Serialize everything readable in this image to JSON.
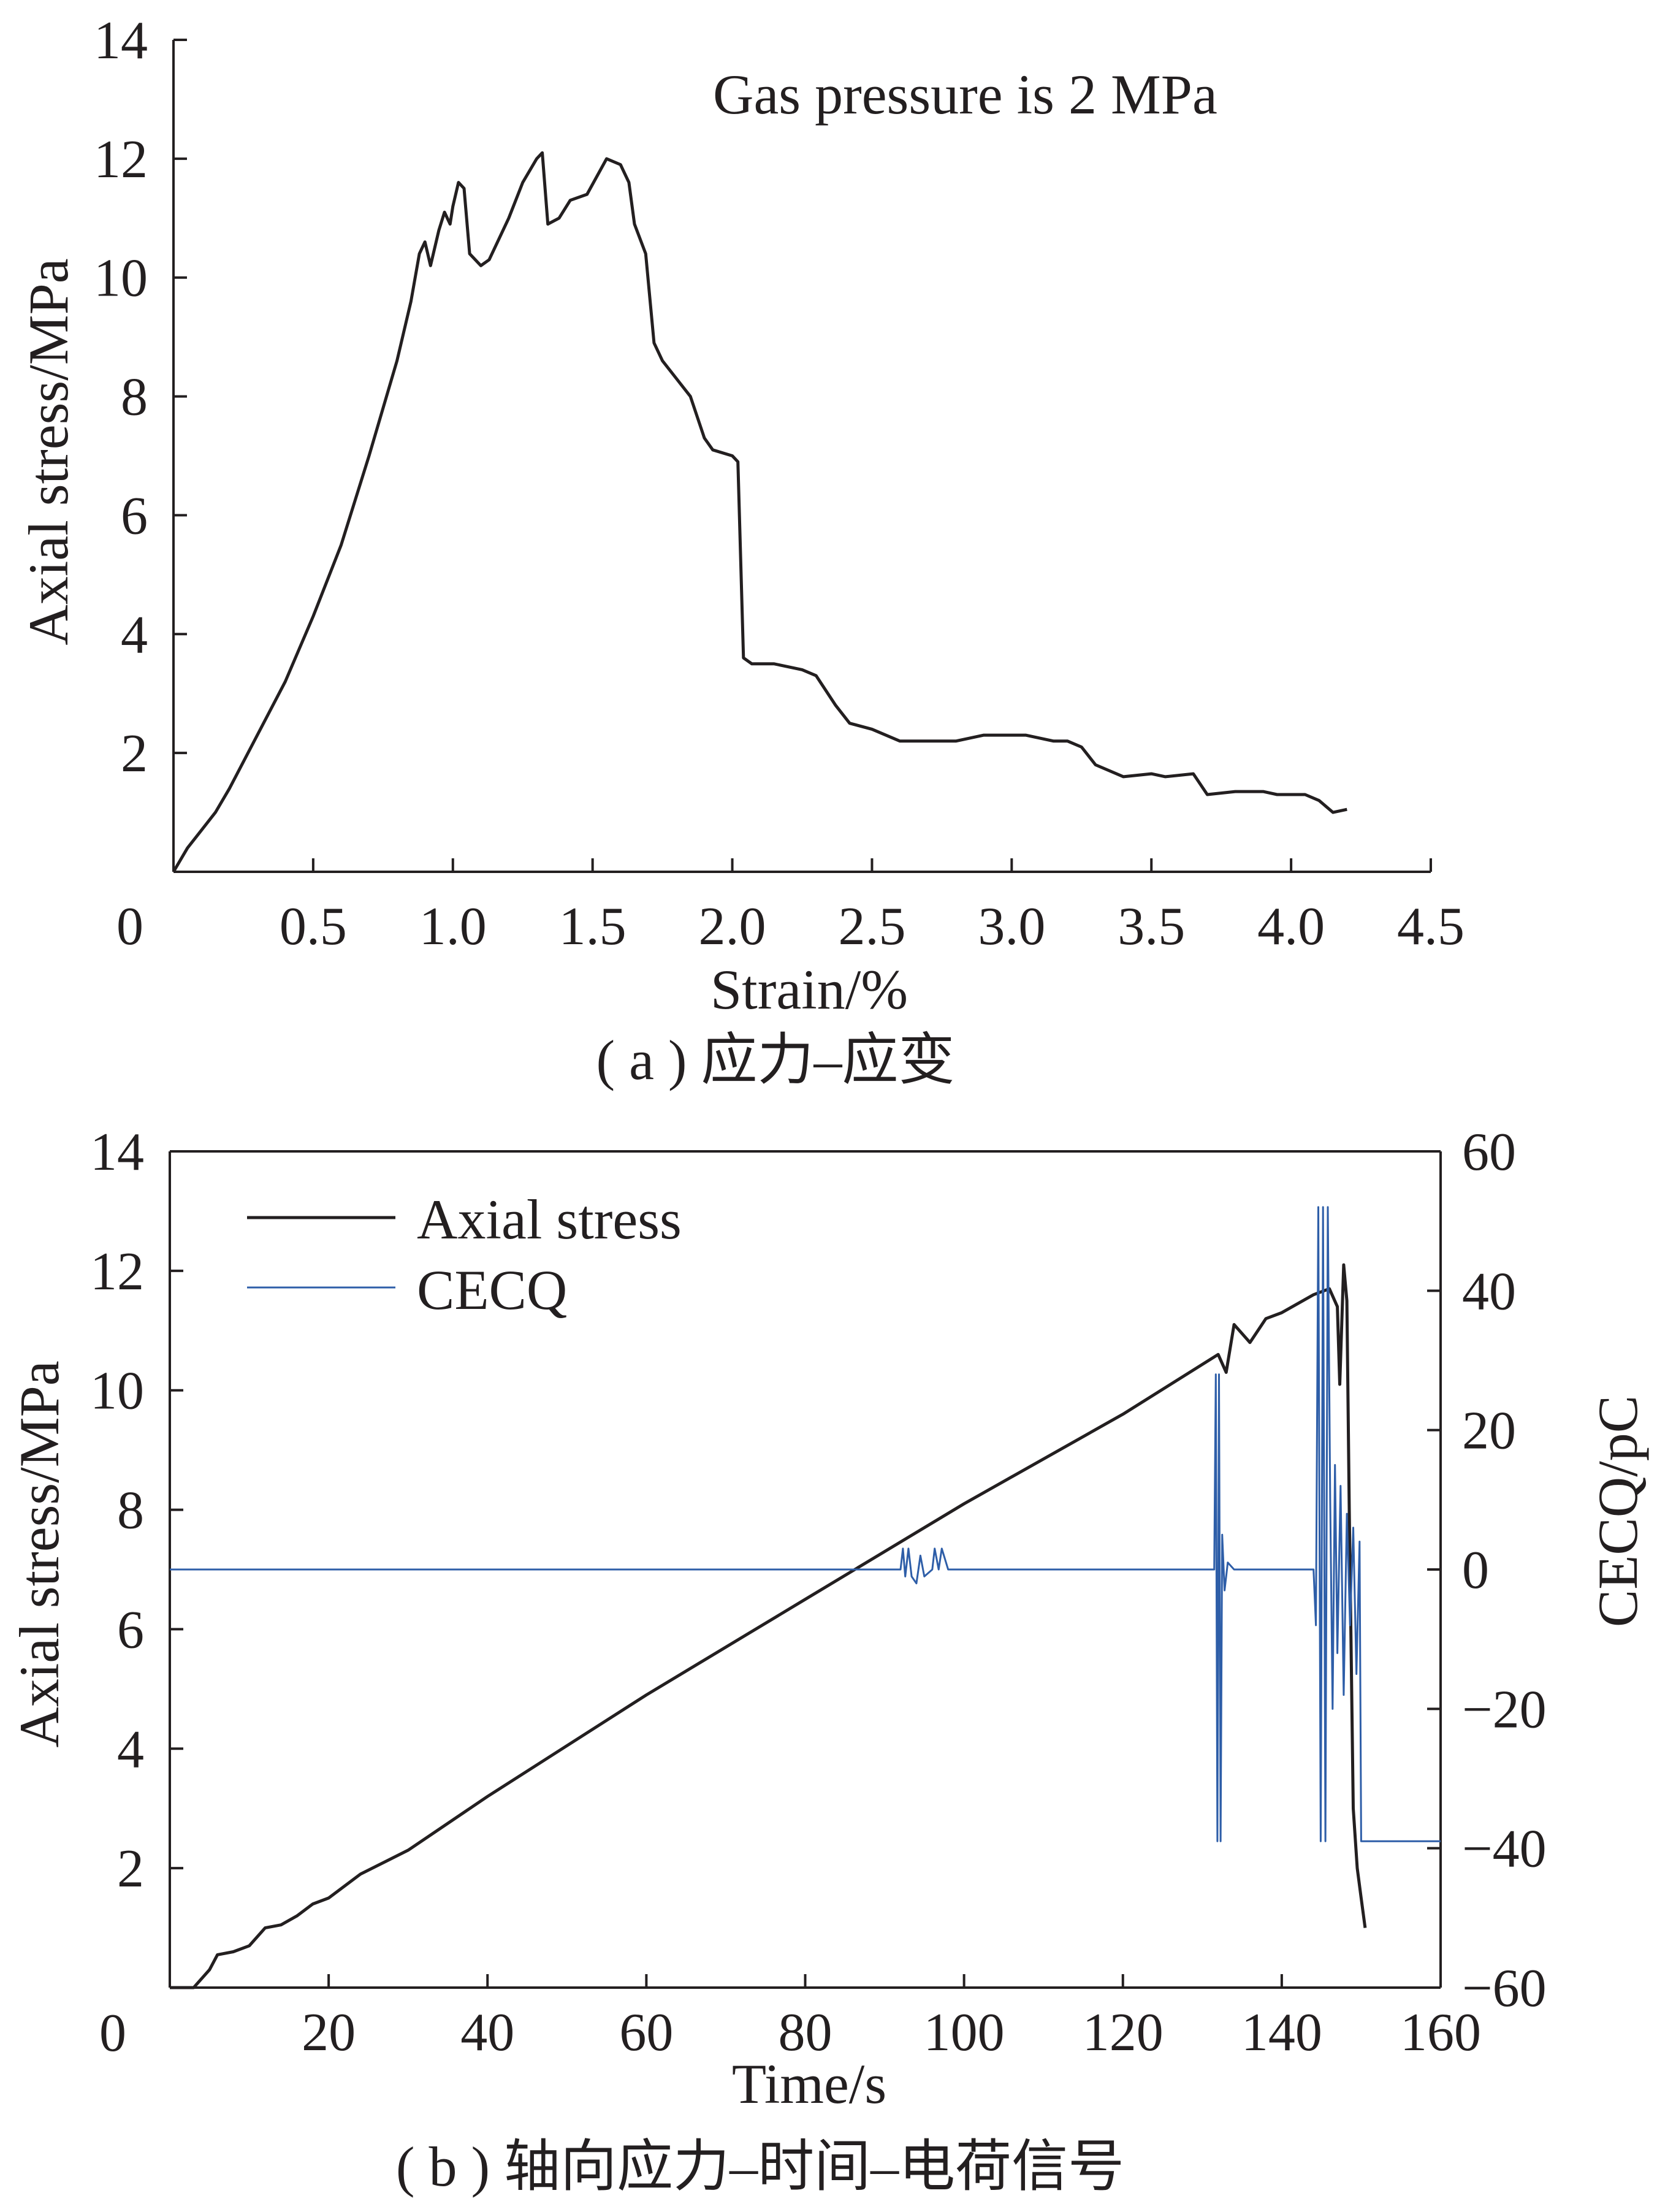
{
  "chart_data": [
    {
      "type": "line",
      "annotation": "Gas pressure is 2 MPa",
      "xlabel": "Strain/%",
      "ylabel": "Axial stress/MPa",
      "caption": "( a ) 应力–应变",
      "xlim": [
        0,
        4.5
      ],
      "ylim": [
        0,
        14
      ],
      "xticks": [
        "0.5",
        "1.0",
        "1.5",
        "2.0",
        "2.5",
        "3.0",
        "3.5",
        "4.0",
        "4.5"
      ],
      "xtick_values": [
        0.5,
        1.0,
        1.5,
        2.0,
        2.5,
        3.0,
        3.5,
        4.0,
        4.5
      ],
      "yticks": [
        "2",
        "4",
        "6",
        "8",
        "10",
        "12",
        "14"
      ],
      "ytick_values": [
        2,
        4,
        6,
        8,
        10,
        12,
        14
      ],
      "origin_label": "0",
      "grid": false,
      "series": [
        {
          "name": "Axial stress",
          "color": "#231f20",
          "x": [
            0,
            0.05,
            0.1,
            0.15,
            0.2,
            0.3,
            0.4,
            0.5,
            0.6,
            0.7,
            0.8,
            0.85,
            0.88,
            0.9,
            0.92,
            0.95,
            0.97,
            0.99,
            1.0,
            1.02,
            1.04,
            1.06,
            1.1,
            1.13,
            1.2,
            1.25,
            1.3,
            1.32,
            1.34,
            1.38,
            1.42,
            1.48,
            1.55,
            1.6,
            1.63,
            1.65,
            1.69,
            1.72,
            1.75,
            1.8,
            1.85,
            1.9,
            1.93,
            2.0,
            2.02,
            2.04,
            2.07,
            2.15,
            2.25,
            2.3,
            2.37,
            2.42,
            2.5,
            2.6,
            2.7,
            2.8,
            2.9,
            3.0,
            3.05,
            3.15,
            3.2,
            3.25,
            3.3,
            3.4,
            3.5,
            3.55,
            3.65,
            3.7,
            3.8,
            3.9,
            3.95,
            4.05,
            4.1,
            4.15,
            4.2
          ],
          "y": [
            0,
            0.4,
            0.7,
            1.0,
            1.4,
            2.3,
            3.2,
            4.3,
            5.5,
            7.0,
            8.6,
            9.6,
            10.4,
            10.6,
            10.2,
            10.8,
            11.1,
            10.9,
            11.2,
            11.6,
            11.5,
            10.4,
            10.2,
            10.3,
            11.0,
            11.6,
            12.0,
            12.1,
            10.9,
            11.0,
            11.3,
            11.4,
            12.0,
            11.9,
            11.6,
            10.9,
            10.4,
            8.9,
            8.6,
            8.3,
            8.0,
            7.3,
            7.1,
            7.0,
            6.9,
            3.6,
            3.5,
            3.5,
            3.4,
            3.3,
            2.8,
            2.5,
            2.4,
            2.2,
            2.2,
            2.2,
            2.3,
            2.3,
            2.3,
            2.2,
            2.2,
            2.1,
            1.8,
            1.6,
            1.65,
            1.6,
            1.65,
            1.3,
            1.35,
            1.35,
            1.3,
            1.3,
            1.2,
            1.0,
            1.05
          ]
        }
      ]
    },
    {
      "type": "line",
      "xlabel": "Time/s",
      "ylabel": "Axial stress/MPa",
      "y2label": "CECQ/pC",
      "caption": "( b ) 轴向应力–时间–电荷信号",
      "xlim": [
        0,
        160
      ],
      "ylim": [
        0,
        14
      ],
      "y2lim": [
        -60,
        60
      ],
      "xticks": [
        "20",
        "40",
        "60",
        "80",
        "100",
        "120",
        "140",
        "160"
      ],
      "xtick_values": [
        20,
        40,
        60,
        80,
        100,
        120,
        140,
        160
      ],
      "yticks": [
        "2",
        "4",
        "6",
        "8",
        "10",
        "12",
        "14"
      ],
      "ytick_values": [
        2,
        4,
        6,
        8,
        10,
        12,
        14
      ],
      "y2ticks": [
        "−60",
        "−40",
        "−20",
        "0",
        "20",
        "40",
        "60"
      ],
      "y2tick_values": [
        -60,
        -40,
        -20,
        0,
        20,
        40,
        60
      ],
      "origin_label": "0",
      "legend_position": "top-left",
      "grid": false,
      "series": [
        {
          "name": "Axial stress",
          "axis": "left",
          "color": "#231f20",
          "x": [
            0,
            3,
            5,
            6,
            8,
            10,
            12,
            14,
            16,
            18,
            20,
            24,
            30,
            40,
            60,
            80,
            100,
            120,
            132,
            133,
            134,
            136,
            138,
            140,
            144,
            146,
            147,
            147.3,
            147.8,
            148.2,
            148.5,
            149,
            149.5,
            150,
            150.5
          ],
          "y": [
            0,
            0,
            0.3,
            0.55,
            0.6,
            0.7,
            1.0,
            1.05,
            1.2,
            1.4,
            1.5,
            1.9,
            2.3,
            3.2,
            4.9,
            6.5,
            8.1,
            9.6,
            10.6,
            10.3,
            11.1,
            10.8,
            11.2,
            11.3,
            11.6,
            11.7,
            11.4,
            10.1,
            12.1,
            11.5,
            8.0,
            3.0,
            2.0,
            1.5,
            1.0
          ]
        },
        {
          "name": "CECQ",
          "axis": "right",
          "color": "#2e5ea8",
          "x": [
            0,
            92,
            92.3,
            92.6,
            93,
            93.4,
            94,
            94.5,
            95,
            96,
            96.3,
            96.8,
            97.2,
            98,
            131.5,
            131.7,
            131.9,
            132.1,
            132.3,
            132.5,
            132.8,
            133.2,
            134,
            144,
            144.3,
            144.6,
            144.9,
            145.2,
            145.5,
            145.8,
            146.1,
            146.4,
            146.7,
            147,
            147.4,
            147.8,
            148.2,
            148.6,
            149,
            149.4,
            149.8,
            150,
            150.2,
            160
          ],
          "y": [
            0,
            0,
            3,
            -1,
            3,
            -1,
            -2,
            2,
            -1,
            0,
            3,
            0,
            3,
            0,
            0,
            28,
            -39,
            28,
            -39,
            5,
            -3,
            1,
            0,
            0,
            -8,
            52,
            -39,
            52,
            -39,
            52,
            10,
            -20,
            15,
            -12,
            12,
            -18,
            8,
            -8,
            6,
            -15,
            4,
            -39,
            -39,
            -39
          ]
        }
      ]
    }
  ]
}
